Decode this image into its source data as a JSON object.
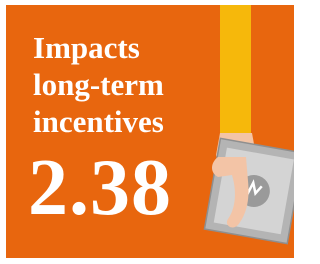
{
  "title": "Impacts long-term incentives",
  "value": 2.38
}
